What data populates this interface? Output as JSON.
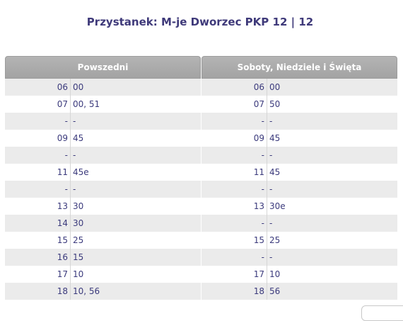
{
  "page": {
    "title": "Przystanek: M-je Dworzec PKP 12 | 12"
  },
  "weekday": {
    "header": "Powszedni",
    "rows": [
      {
        "hour": "06",
        "mins": "00"
      },
      {
        "hour": "07",
        "mins": "00, 51"
      },
      {
        "hour": "-",
        "mins": "-"
      },
      {
        "hour": "09",
        "mins": "45"
      },
      {
        "hour": "-",
        "mins": "-"
      },
      {
        "hour": "11",
        "mins": "45e"
      },
      {
        "hour": "-",
        "mins": "-"
      },
      {
        "hour": "13",
        "mins": "30"
      },
      {
        "hour": "14",
        "mins": "30"
      },
      {
        "hour": "15",
        "mins": "25"
      },
      {
        "hour": "16",
        "mins": "15"
      },
      {
        "hour": "17",
        "mins": "10"
      },
      {
        "hour": "18",
        "mins": "10, 56"
      }
    ]
  },
  "weekend": {
    "header": "Soboty, Niedziele i Święta",
    "rows": [
      {
        "hour": "06",
        "mins": "00"
      },
      {
        "hour": "07",
        "mins": "50"
      },
      {
        "hour": "-",
        "mins": "-"
      },
      {
        "hour": "09",
        "mins": "45"
      },
      {
        "hour": "-",
        "mins": "-"
      },
      {
        "hour": "11",
        "mins": "45"
      },
      {
        "hour": "-",
        "mins": "-"
      },
      {
        "hour": "13",
        "mins": "30e"
      },
      {
        "hour": "-",
        "mins": "-"
      },
      {
        "hour": "15",
        "mins": "25"
      },
      {
        "hour": "-",
        "mins": "-"
      },
      {
        "hour": "17",
        "mins": "10"
      },
      {
        "hour": "18",
        "mins": "56"
      }
    ]
  },
  "colors": {
    "title": "#3f3a7a",
    "header_bg": "#a8a8a8",
    "row_alt": "#ebebeb",
    "text": "#3b3a7c"
  }
}
